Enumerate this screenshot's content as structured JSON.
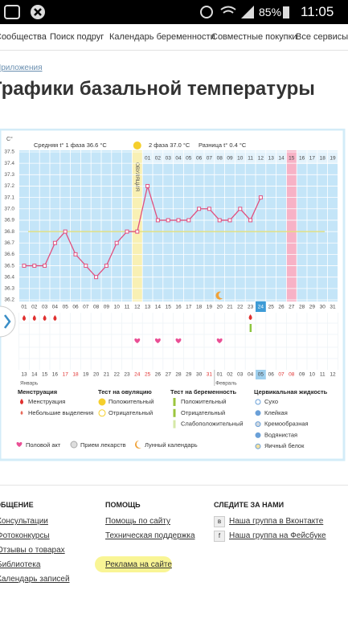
{
  "status": {
    "battery": "85%",
    "time": "11:05"
  },
  "nav": [
    "Сообщества",
    "Поиск подруг",
    "Календарь беременности",
    "Совместные покупки",
    "Все сервисы"
  ],
  "breadcrumb": "Приложения",
  "title": "Графики базальной температуры",
  "chart_data": {
    "type": "line",
    "stats": [
      "Средняя t° 1 фаза 36.6 °C",
      "2 фаза 37.0 °C",
      "Разница t° 0.4 °C"
    ],
    "y_label": "C°",
    "ovulation_label": "ОВУЛЯЦИЯ",
    "ovulation_day": "12",
    "categories": [
      "01",
      "02",
      "03",
      "04",
      "05",
      "06",
      "07",
      "08",
      "09",
      "10",
      "11",
      "12",
      "13",
      "14",
      "15",
      "16",
      "17",
      "18",
      "19",
      "20",
      "21",
      "22",
      "23",
      "24",
      "25",
      "26",
      "27",
      "28",
      "29",
      "30",
      "31"
    ],
    "phase2_days": [
      "01",
      "02",
      "03",
      "04",
      "05",
      "06",
      "07",
      "08",
      "09",
      "10",
      "11",
      "12",
      "13",
      "14",
      "15",
      "16",
      "17",
      "18",
      "19"
    ],
    "phase2_start": "13",
    "highlight_phase2_day": "15",
    "today": "24",
    "values": [
      36.5,
      36.5,
      36.5,
      36.7,
      36.8,
      36.6,
      36.5,
      36.4,
      36.5,
      36.7,
      36.8,
      36.8,
      37.2,
      36.9,
      36.9,
      36.9,
      36.9,
      37.0,
      37.0,
      36.9,
      36.9,
      37.0,
      36.9,
      37.1,
      null,
      null,
      null,
      null,
      null,
      null,
      null
    ],
    "color": "#e0507f",
    "coverline": 36.8,
    "ylim": [
      36.2,
      37.5
    ],
    "yticks": [
      37.5,
      37.4,
      37.3,
      37.2,
      37.1,
      {
        "value": 37.0,
        "label": "37.0"
      },
      36.9,
      36.8,
      36.7,
      36.6,
      36.5,
      36.4,
      36.3,
      36.2
    ],
    "grid": true,
    "markers": {
      "menstruation": [
        "01",
        "02",
        "03",
        "04"
      ],
      "pregnancy_test": [
        "23"
      ],
      "intercourse": [
        "12",
        "14",
        "16",
        "20"
      ],
      "moon": [
        "20"
      ]
    },
    "dates": [
      "13",
      "14",
      "15",
      "16",
      "17",
      "18",
      "19",
      "20",
      "21",
      "22",
      "23",
      "24",
      "25",
      "26",
      "27",
      "28",
      "29",
      "30",
      "31",
      "01",
      "02",
      "03",
      "04",
      "05",
      "06",
      "07",
      "08",
      "09",
      "10",
      "11",
      "12"
    ],
    "weekends": [
      4,
      5,
      11,
      12,
      18,
      25,
      26
    ],
    "months": [
      {
        "label": "Январь",
        "at": "13"
      },
      {
        "label": "Февраль",
        "at": "01"
      }
    ],
    "legend": {
      "groups": [
        {
          "title": "Менструация",
          "items": [
            "Менструация",
            "Небольшие выделения"
          ]
        },
        {
          "title": "Тест на овуляцию",
          "items": [
            "Положительный",
            "Отрицательный"
          ]
        },
        {
          "title": "Тест на беременность",
          "items": [
            "Положительный",
            "Отрицательный",
            "Слабоположительный"
          ]
        },
        {
          "title": "Цервикальная жидкость",
          "items": [
            "Сухо",
            "Клейкая",
            "Кремообразная",
            "Водянистая",
            "Яичный белок"
          ]
        }
      ],
      "extra": [
        "Половой акт",
        "Прием лекарств",
        "Лунный календарь"
      ]
    }
  },
  "footer": [
    {
      "heading": "ОБЩЕНИЕ",
      "links": [
        "Консультации",
        "Фотоконкурсы",
        "Отзывы о товарах",
        "Библиотека",
        "Календарь записей"
      ]
    },
    {
      "heading": "ПОМОЩЬ",
      "links": [
        "Помощь по сайту",
        "Техническая поддержка",
        "Реклама на сайте"
      ]
    },
    {
      "heading": "СЛЕДИТЕ ЗА НАМИ",
      "links": [
        "Наша группа в Вконтакте",
        "Наша группа на Фейсбуке"
      ]
    }
  ]
}
